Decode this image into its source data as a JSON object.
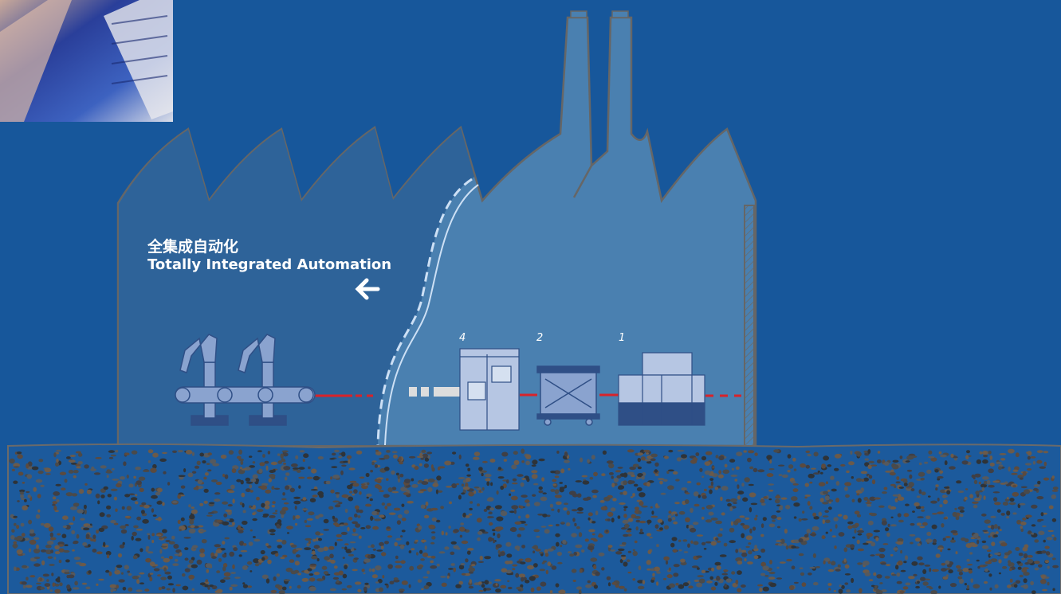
{
  "heading": {
    "chinese": "全集成自动化",
    "english": "Totally Integrated Automation"
  },
  "equipment": [
    {
      "number": 4
    },
    {
      "number": 2
    },
    {
      "number": 1
    }
  ]
}
